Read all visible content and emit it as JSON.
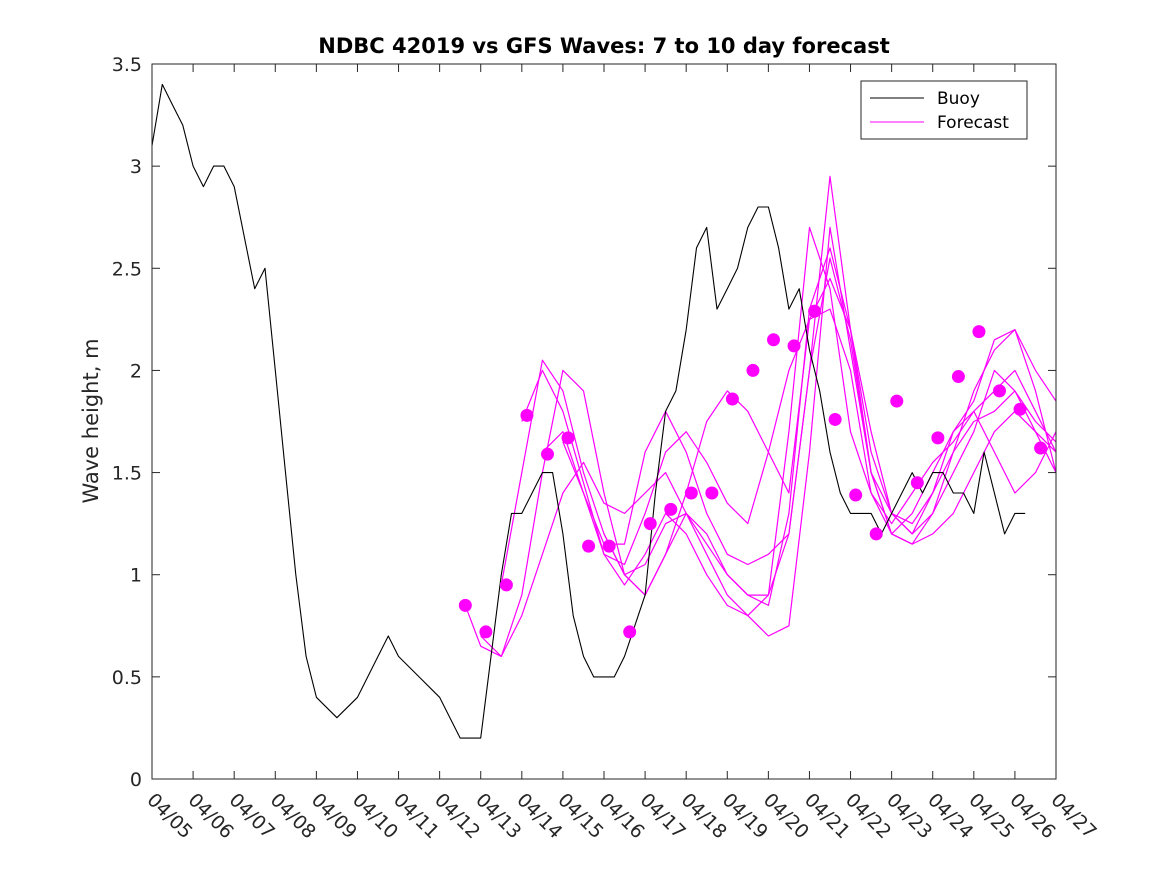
{
  "chart_data": {
    "type": "line",
    "title": "NDBC 42019 vs GFS Waves: 7 to 10 day forecast",
    "ylabel": "Wave height, m",
    "xlabel": "",
    "xlim": [
      "04/05",
      "04/27"
    ],
    "ylim": [
      0,
      3.5
    ],
    "grid": false,
    "legend_position": "top-right",
    "x_tick_labels": [
      "04/05",
      "04/06",
      "04/07",
      "04/08",
      "04/09",
      "04/10",
      "04/11",
      "04/12",
      "04/13",
      "04/14",
      "04/15",
      "04/16",
      "04/17",
      "04/18",
      "04/19",
      "04/20",
      "04/21",
      "04/22",
      "04/23",
      "04/24",
      "04/25",
      "04/26",
      "04/27"
    ],
    "y_ticks": [
      0,
      0.5,
      1,
      1.5,
      2,
      2.5,
      3,
      3.5
    ],
    "y_tick_labels": [
      "0",
      "0.5",
      "1",
      "1.5",
      "2",
      "2.5",
      "3",
      "3.5"
    ],
    "colors": {
      "buoy": "#000000",
      "forecast": "#ff00ff",
      "markers": "#ff00ff"
    },
    "series": [
      {
        "name": "Buoy",
        "kind": "line",
        "color": "#000000",
        "x": [
          "04/05 00:00",
          "04/05 06:00",
          "04/05 12:00",
          "04/05 18:00",
          "04/06 00:00",
          "04/06 06:00",
          "04/06 12:00",
          "04/06 18:00",
          "04/07 00:00",
          "04/07 12:00",
          "04/07 18:00",
          "04/08 00:00",
          "04/08 06:00",
          "04/08 12:00",
          "04/08 18:00",
          "04/09 00:00",
          "04/09 12:00",
          "04/10 00:00",
          "04/10 12:00",
          "04/10 18:00",
          "04/11 00:00",
          "04/11 12:00",
          "04/12 00:00",
          "04/12 06:00",
          "04/12 12:00",
          "04/13 00:00",
          "04/13 06:00",
          "04/13 12:00",
          "04/13 18:00",
          "04/14 00:00",
          "04/14 06:00",
          "04/14 12:00",
          "04/14 18:00",
          "04/15 00:00",
          "04/15 06:00",
          "04/15 12:00",
          "04/15 18:00",
          "04/16 00:00",
          "04/16 06:00",
          "04/16 12:00",
          "04/17 00:00",
          "04/17 06:00",
          "04/17 12:00",
          "04/17 18:00",
          "04/18 00:00",
          "04/18 06:00",
          "04/18 12:00",
          "04/18 18:00",
          "04/19 00:00",
          "04/19 06:00",
          "04/19 12:00",
          "04/19 18:00",
          "04/20 00:00",
          "04/20 06:00",
          "04/20 12:00",
          "04/20 18:00",
          "04/21 00:00",
          "04/21 06:00",
          "04/21 12:00",
          "04/21 18:00",
          "04/22 00:00",
          "04/22 06:00",
          "04/22 12:00",
          "04/22 18:00",
          "04/23 00:00",
          "04/23 06:00",
          "04/23 12:00",
          "04/23 18:00",
          "04/24 00:00",
          "04/24 06:00",
          "04/24 12:00",
          "04/24 18:00",
          "04/25 00:00",
          "04/25 06:00",
          "04/25 12:00",
          "04/25 18:00",
          "04/26 00:00",
          "04/26 06:00"
        ],
        "values": [
          3.1,
          3.4,
          3.3,
          3.2,
          3.0,
          2.9,
          3.0,
          3.0,
          2.9,
          2.4,
          2.5,
          2.0,
          1.5,
          1.0,
          0.6,
          0.4,
          0.3,
          0.4,
          0.6,
          0.7,
          0.6,
          0.5,
          0.4,
          0.3,
          0.2,
          0.2,
          0.6,
          1.0,
          1.3,
          1.3,
          1.4,
          1.5,
          1.5,
          1.2,
          0.8,
          0.6,
          0.5,
          0.5,
          0.5,
          0.6,
          0.9,
          1.4,
          1.8,
          1.9,
          2.2,
          2.6,
          2.7,
          2.3,
          2.4,
          2.5,
          2.7,
          2.8,
          2.8,
          2.6,
          2.3,
          2.4,
          2.1,
          1.9,
          1.6,
          1.4,
          1.3,
          1.3,
          1.3,
          1.2,
          1.3,
          1.4,
          1.5,
          1.4,
          1.5,
          1.5,
          1.4,
          1.4,
          1.3,
          1.6,
          1.4,
          1.2,
          1.3,
          1.3
        ]
      },
      {
        "name": "Forecast",
        "kind": "line",
        "color": "#ff00ff",
        "runs": [
          {
            "x": [
              "04/12 15:00",
              "04/13 00:00",
              "04/13 12:00",
              "04/14 00:00",
              "04/14 12:00",
              "04/15 00:00",
              "04/15 12:00",
              "04/16 00:00",
              "04/16 12:00",
              "04/17 00:00",
              "04/17 12:00",
              "04/18 00:00",
              "04/18 12:00",
              "04/19 00:00",
              "04/19 12:00",
              "04/20 00:00",
              "04/20 12:00",
              "04/21 00:00",
              "04/21 12:00",
              "04/22 00:00",
              "04/22 12:00",
              "04/23 00:00",
              "04/23 12:00",
              "04/24 00:00",
              "04/24 12:00",
              "04/25 00:00",
              "04/25 12:00",
              "04/26 00:00",
              "04/26 12:00",
              "04/27 00:00"
            ],
            "values": [
              0.85,
              0.65,
              0.6,
              0.8,
              1.1,
              1.4,
              1.55,
              1.35,
              1.3,
              1.4,
              1.5,
              1.3,
              1.1,
              0.9,
              0.8,
              0.7,
              0.75,
              1.6,
              2.7,
              2.1,
              1.5,
              1.3,
              1.25,
              1.4,
              1.7,
              1.8,
              1.6,
              1.4,
              1.5,
              1.7
            ]
          },
          {
            "x": [
              "04/13 00:00",
              "04/13 12:00",
              "04/14 00:00",
              "04/14 12:00",
              "04/15 00:00",
              "04/15 12:00",
              "04/16 00:00",
              "04/16 12:00",
              "04/17 00:00",
              "04/17 12:00",
              "04/18 00:00",
              "04/18 12:00",
              "04/19 00:00",
              "04/19 12:00",
              "04/20 00:00",
              "04/20 12:00",
              "04/21 00:00",
              "04/21 12:00",
              "04/22 00:00",
              "04/22 12:00",
              "04/23 00:00",
              "04/23 12:00",
              "04/24 00:00",
              "04/24 12:00",
              "04/25 00:00",
              "04/25 12:00",
              "04/26 00:00",
              "04/26 12:00",
              "04/27 00:00"
            ],
            "values": [
              0.7,
              0.6,
              0.9,
              1.5,
              2.0,
              1.9,
              1.4,
              1.0,
              0.9,
              1.1,
              1.3,
              1.2,
              1.0,
              0.9,
              0.9,
              1.2,
              2.0,
              2.95,
              2.2,
              1.5,
              1.2,
              1.15,
              1.3,
              1.6,
              1.9,
              2.1,
              2.2,
              1.9,
              1.5
            ]
          },
          {
            "x": [
              "04/13 12:00",
              "04/14 00:00",
              "04/14 12:00",
              "04/15 00:00",
              "04/15 12:00",
              "04/16 00:00",
              "04/16 12:00",
              "04/17 00:00",
              "04/17 12:00",
              "04/18 00:00",
              "04/18 12:00",
              "04/19 00:00",
              "04/19 12:00",
              "04/20 00:00",
              "04/20 12:00",
              "04/21 00:00",
              "04/21 12:00",
              "04/22 00:00",
              "04/22 12:00",
              "04/23 00:00",
              "04/23 12:00",
              "04/24 00:00",
              "04/24 12:00",
              "04/25 00:00",
              "04/25 12:00",
              "04/26 00:00",
              "04/26 12:00",
              "04/27 00:00"
            ],
            "values": [
              0.95,
              1.5,
              2.05,
              1.9,
              1.5,
              1.2,
              1.0,
              1.05,
              1.25,
              1.3,
              1.15,
              1.0,
              0.9,
              0.85,
              1.3,
              2.3,
              2.6,
              2.2,
              1.6,
              1.3,
              1.2,
              1.3,
              1.5,
              1.7,
              2.0,
              1.9,
              1.7,
              1.5
            ]
          },
          {
            "x": [
              "04/14 00:00",
              "04/14 12:00",
              "04/15 00:00",
              "04/15 12:00",
              "04/16 00:00",
              "04/16 12:00",
              "04/17 00:00",
              "04/17 12:00",
              "04/18 00:00",
              "04/18 12:00",
              "04/19 00:00",
              "04/19 12:00",
              "04/20 00:00",
              "04/20 12:00",
              "04/21 00:00",
              "04/21 12:00",
              "04/22 00:00",
              "04/22 12:00",
              "04/23 00:00",
              "04/23 12:00",
              "04/24 00:00",
              "04/24 12:00",
              "04/25 00:00",
              "04/25 12:00",
              "04/26 00:00",
              "04/26 12:00",
              "04/27 00:00"
            ],
            "values": [
              1.75,
              2.0,
              1.8,
              1.45,
              1.1,
              0.95,
              1.1,
              1.3,
              1.2,
              1.0,
              0.85,
              0.8,
              0.9,
              1.7,
              2.7,
              2.4,
              1.7,
              1.4,
              1.25,
              1.4,
              1.55,
              1.65,
              1.8,
              1.9,
              2.0,
              1.8,
              1.6
            ]
          },
          {
            "x": [
              "04/14 12:00",
              "04/15 00:00",
              "04/15 12:00",
              "04/16 00:00",
              "04/16 12:00",
              "04/17 00:00",
              "04/17 12:00",
              "04/18 00:00",
              "04/18 12:00",
              "04/19 00:00",
              "04/19 12:00",
              "04/20 00:00",
              "04/20 12:00",
              "04/21 00:00",
              "04/21 12:00",
              "04/22 00:00",
              "04/22 12:00",
              "04/23 00:00",
              "04/23 12:00",
              "04/24 00:00",
              "04/24 12:00",
              "04/25 00:00",
              "04/25 12:00",
              "04/26 00:00",
              "04/26 12:00",
              "04/27 00:00"
            ],
            "values": [
              1.6,
              1.7,
              1.4,
              1.1,
              1.05,
              1.3,
              1.6,
              1.7,
              1.55,
              1.35,
              1.25,
              1.6,
              2.0,
              2.25,
              2.3,
              2.0,
              1.4,
              1.2,
              1.3,
              1.5,
              1.7,
              1.85,
              2.15,
              2.2,
              2.0,
              1.85
            ]
          },
          {
            "x": [
              "04/15 00:00",
              "04/15 12:00",
              "04/16 00:00",
              "04/16 12:00",
              "04/17 00:00",
              "04/17 12:00",
              "04/18 00:00",
              "04/18 12:00",
              "04/19 00:00",
              "04/19 12:00",
              "04/20 00:00",
              "04/20 12:00",
              "04/21 00:00",
              "04/21 12:00",
              "04/22 00:00",
              "04/22 12:00",
              "04/23 00:00",
              "04/23 12:00",
              "04/24 00:00",
              "04/24 12:00",
              "04/25 00:00",
              "04/25 12:00",
              "04/26 00:00",
              "04/26 12:00",
              "04/27 00:00"
            ],
            "values": [
              1.65,
              1.4,
              1.15,
              1.15,
              1.6,
              1.8,
              1.6,
              1.3,
              1.1,
              1.05,
              1.1,
              1.2,
              2.0,
              2.55,
              2.15,
              1.5,
              1.2,
              1.15,
              1.2,
              1.3,
              1.5,
              1.7,
              1.8,
              1.7,
              1.6
            ]
          },
          {
            "x": [
              "04/16 00:00",
              "04/16 12:00",
              "04/17 00:00",
              "04/17 12:00",
              "04/18 00:00",
              "04/18 12:00",
              "04/19 00:00",
              "04/19 12:00",
              "04/20 00:00",
              "04/20 12:00",
              "04/21 00:00",
              "04/21 12:00",
              "04/22 00:00",
              "04/22 12:00",
              "04/23 00:00",
              "04/23 12:00",
              "04/24 00:00",
              "04/24 12:00",
              "04/25 00:00",
              "04/25 12:00",
              "04/26 00:00",
              "04/26 12:00",
              "04/27 00:00"
            ],
            "values": [
              1.2,
              1.0,
              0.9,
              1.1,
              1.4,
              1.75,
              1.9,
              1.8,
              1.6,
              1.4,
              2.25,
              2.45,
              2.2,
              1.7,
              1.3,
              1.2,
              1.4,
              1.6,
              1.75,
              1.8,
              1.9,
              1.75,
              1.65
            ]
          }
        ]
      },
      {
        "kind": "scatter",
        "color": "#ff00ff",
        "x": [
          "04/12 15:00",
          "04/13 03:00",
          "04/13 15:00",
          "04/14 03:00",
          "04/14 15:00",
          "04/15 03:00",
          "04/15 15:00",
          "04/16 03:00",
          "04/16 15:00",
          "04/17 03:00",
          "04/17 15:00",
          "04/18 03:00",
          "04/18 15:00",
          "04/19 03:00",
          "04/19 15:00",
          "04/20 03:00",
          "04/20 15:00",
          "04/21 03:00",
          "04/21 15:00",
          "04/22 03:00",
          "04/22 15:00",
          "04/23 03:00",
          "04/23 15:00",
          "04/24 03:00",
          "04/24 15:00",
          "04/25 03:00",
          "04/25 15:00",
          "04/26 03:00",
          "04/26 15:00"
        ],
        "values": [
          0.85,
          0.72,
          0.95,
          1.78,
          1.59,
          1.67,
          1.14,
          1.14,
          0.72,
          1.25,
          1.32,
          1.4,
          1.4,
          1.86,
          2.0,
          2.15,
          2.12,
          2.29,
          1.76,
          1.39,
          1.2,
          1.85,
          1.45,
          1.67,
          1.97,
          2.19,
          1.9,
          1.81,
          1.62
        ]
      }
    ],
    "legend": [
      {
        "label": "Buoy",
        "color": "#000000"
      },
      {
        "label": "Forecast",
        "color": "#ff00ff"
      }
    ]
  }
}
